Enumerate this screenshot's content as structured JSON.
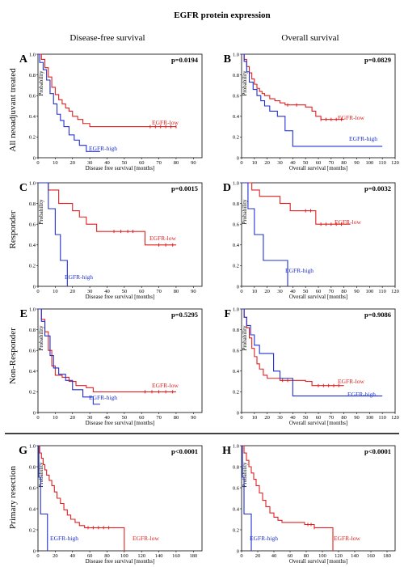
{
  "figure": {
    "title": "EGFR protein expression",
    "col_headers": [
      "Disease-free survival",
      "Overall survival"
    ],
    "row_labels": [
      "All neoadjuvant treated",
      "Responder",
      "Non-Responder",
      "Primary resection"
    ]
  },
  "colors": {
    "low": "#e02020",
    "high": "#2030d0"
  },
  "chart_data": [
    {
      "panel": "A",
      "type": "line",
      "p_value": "p=0.0194",
      "xlabel": "Disease free survival [months]",
      "ylabel": "Probability",
      "xlim": [
        0,
        95
      ],
      "ylim": [
        0,
        1
      ],
      "xticks": [
        0,
        10,
        20,
        30,
        40,
        50,
        60,
        70,
        80,
        90
      ],
      "yticks": [
        "0",
        "0.2",
        "0.4",
        "0.6",
        "0.8",
        "1.0"
      ],
      "series": [
        {
          "name": "EGFR-low",
          "color": "low",
          "censor": [
            65,
            68,
            71,
            74,
            77,
            80
          ],
          "points": [
            [
              0,
              1
            ],
            [
              2,
              0.95
            ],
            [
              4,
              0.87
            ],
            [
              6,
              0.78
            ],
            [
              8,
              0.68
            ],
            [
              10,
              0.61
            ],
            [
              12,
              0.56
            ],
            [
              14,
              0.52
            ],
            [
              16,
              0.48
            ],
            [
              18,
              0.45
            ],
            [
              20,
              0.4
            ],
            [
              23,
              0.37
            ],
            [
              26,
              0.33
            ],
            [
              30,
              0.3
            ],
            [
              80,
              0.3
            ]
          ]
        },
        {
          "name": "EGFR-high",
          "color": "high",
          "censor": [],
          "points": [
            [
              0,
              1
            ],
            [
              1,
              0.92
            ],
            [
              3,
              0.85
            ],
            [
              5,
              0.75
            ],
            [
              7,
              0.62
            ],
            [
              9,
              0.52
            ],
            [
              11,
              0.42
            ],
            [
              13,
              0.36
            ],
            [
              15,
              0.3
            ],
            [
              18,
              0.22
            ],
            [
              21,
              0.17
            ],
            [
              24,
              0.12
            ],
            [
              28,
              0.06
            ],
            [
              36,
              0.06
            ]
          ]
        }
      ]
    },
    {
      "panel": "B",
      "type": "line",
      "p_value": "p=0.0829",
      "xlabel": "Overall survival [months]",
      "ylabel": "Probability",
      "xlim": [
        0,
        120
      ],
      "ylim": [
        0,
        1
      ],
      "xticks": [
        0,
        10,
        20,
        30,
        40,
        50,
        60,
        70,
        80,
        90,
        100,
        110,
        120
      ],
      "yticks": [
        "0",
        "0.2",
        "0.4",
        "0.6",
        "0.8",
        "1.0"
      ],
      "series": [
        {
          "name": "EGFR-low",
          "color": "low",
          "censor": [
            36,
            43,
            62,
            66,
            70,
            74,
            78
          ],
          "points": [
            [
              0,
              1
            ],
            [
              2,
              0.95
            ],
            [
              4,
              0.88
            ],
            [
              6,
              0.82
            ],
            [
              8,
              0.76
            ],
            [
              10,
              0.71
            ],
            [
              12,
              0.67
            ],
            [
              14,
              0.64
            ],
            [
              16,
              0.62
            ],
            [
              18,
              0.6
            ],
            [
              22,
              0.57
            ],
            [
              26,
              0.55
            ],
            [
              30,
              0.53
            ],
            [
              34,
              0.51
            ],
            [
              50,
              0.49
            ],
            [
              55,
              0.45
            ],
            [
              58,
              0.4
            ],
            [
              62,
              0.37
            ],
            [
              80,
              0.37
            ]
          ]
        },
        {
          "name": "EGFR-high",
          "color": "high",
          "censor": [],
          "points": [
            [
              0,
              1
            ],
            [
              2,
              0.93
            ],
            [
              4,
              0.83
            ],
            [
              6,
              0.73
            ],
            [
              9,
              0.66
            ],
            [
              12,
              0.6
            ],
            [
              15,
              0.55
            ],
            [
              18,
              0.5
            ],
            [
              22,
              0.45
            ],
            [
              28,
              0.4
            ],
            [
              34,
              0.26
            ],
            [
              40,
              0.11
            ],
            [
              110,
              0.11
            ]
          ]
        }
      ]
    },
    {
      "panel": "C",
      "type": "line",
      "p_value": "p=0.0015",
      "xlabel": "Disease free survival [months]",
      "ylabel": "Probability",
      "xlim": [
        0,
        95
      ],
      "ylim": [
        0,
        1
      ],
      "xticks": [
        0,
        10,
        20,
        30,
        40,
        50,
        60,
        70,
        80,
        90
      ],
      "yticks": [
        "0",
        "0.2",
        "0.4",
        "0.6",
        "0.8",
        "1.0"
      ],
      "series": [
        {
          "name": "EGFR-low",
          "color": "low",
          "censor": [
            44,
            48,
            52,
            55,
            70,
            74,
            78
          ],
          "points": [
            [
              0,
              1
            ],
            [
              6,
              0.93
            ],
            [
              12,
              0.8
            ],
            [
              20,
              0.73
            ],
            [
              24,
              0.67
            ],
            [
              28,
              0.6
            ],
            [
              34,
              0.53
            ],
            [
              60,
              0.53
            ],
            [
              62,
              0.4
            ],
            [
              80,
              0.4
            ]
          ]
        },
        {
          "name": "EGFR-high",
          "color": "high",
          "censor": [],
          "points": [
            [
              0,
              1
            ],
            [
              6,
              0.75
            ],
            [
              10,
              0.5
            ],
            [
              13,
              0.25
            ],
            [
              17,
              0
            ]
          ]
        }
      ]
    },
    {
      "panel": "D",
      "type": "line",
      "p_value": "p=0.0032",
      "xlabel": "Overall survival [months]",
      "ylabel": "Probability",
      "xlim": [
        0,
        120
      ],
      "ylim": [
        0,
        1
      ],
      "xticks": [
        0,
        10,
        20,
        30,
        40,
        50,
        60,
        70,
        80,
        90,
        100,
        110,
        120
      ],
      "yticks": [
        "0",
        "0.2",
        "0.4",
        "0.6",
        "0.8",
        "1.0"
      ],
      "series": [
        {
          "name": "EGFR-low",
          "color": "low",
          "censor": [
            50,
            54,
            62,
            66,
            70,
            74,
            78
          ],
          "points": [
            [
              0,
              1
            ],
            [
              8,
              0.93
            ],
            [
              14,
              0.87
            ],
            [
              30,
              0.8
            ],
            [
              38,
              0.73
            ],
            [
              55,
              0.73
            ],
            [
              58,
              0.6
            ],
            [
              85,
              0.6
            ]
          ]
        },
        {
          "name": "EGFR-high",
          "color": "high",
          "censor": [],
          "points": [
            [
              0,
              1
            ],
            [
              5,
              0.75
            ],
            [
              10,
              0.5
            ],
            [
              17,
              0.25
            ],
            [
              36,
              0
            ]
          ]
        }
      ]
    },
    {
      "panel": "E",
      "type": "line",
      "p_value": "p=0.5295",
      "xlabel": "Disease free survival [months]",
      "ylabel": "Probability",
      "xlim": [
        0,
        95
      ],
      "ylim": [
        0,
        1
      ],
      "xticks": [
        0,
        10,
        20,
        30,
        40,
        50,
        60,
        70,
        80,
        90
      ],
      "yticks": [
        "0",
        "0.2",
        "0.4",
        "0.6",
        "0.8",
        "1.0"
      ],
      "series": [
        {
          "name": "EGFR-low",
          "color": "low",
          "censor": [
            62,
            66,
            70,
            74,
            78
          ],
          "points": [
            [
              0,
              1
            ],
            [
              2,
              0.9
            ],
            [
              4,
              0.78
            ],
            [
              6,
              0.6
            ],
            [
              8,
              0.45
            ],
            [
              10,
              0.36
            ],
            [
              14,
              0.34
            ],
            [
              18,
              0.3
            ],
            [
              22,
              0.26
            ],
            [
              28,
              0.24
            ],
            [
              32,
              0.2
            ],
            [
              80,
              0.2
            ]
          ]
        },
        {
          "name": "EGFR-high",
          "color": "high",
          "censor": [],
          "points": [
            [
              0,
              1
            ],
            [
              2,
              0.88
            ],
            [
              4,
              0.74
            ],
            [
              7,
              0.55
            ],
            [
              9,
              0.43
            ],
            [
              12,
              0.37
            ],
            [
              16,
              0.31
            ],
            [
              20,
              0.22
            ],
            [
              26,
              0.15
            ],
            [
              32,
              0.08
            ],
            [
              36,
              0.08
            ]
          ]
        }
      ]
    },
    {
      "panel": "F",
      "type": "line",
      "p_value": "p=0.9086",
      "xlabel": "Overall survival [months]",
      "ylabel": "Probability",
      "xlim": [
        0,
        120
      ],
      "ylim": [
        0,
        1
      ],
      "xticks": [
        0,
        10,
        20,
        30,
        40,
        50,
        60,
        70,
        80,
        90,
        100,
        110,
        120
      ],
      "yticks": [
        "0",
        "0.2",
        "0.4",
        "0.6",
        "0.8",
        "1.0"
      ],
      "series": [
        {
          "name": "EGFR-low",
          "color": "low",
          "censor": [
            32,
            36,
            60,
            64,
            68,
            72,
            76
          ],
          "points": [
            [
              0,
              1
            ],
            [
              2,
              0.92
            ],
            [
              4,
              0.82
            ],
            [
              6,
              0.72
            ],
            [
              8,
              0.62
            ],
            [
              10,
              0.54
            ],
            [
              12,
              0.47
            ],
            [
              14,
              0.42
            ],
            [
              17,
              0.36
            ],
            [
              20,
              0.33
            ],
            [
              30,
              0.31
            ],
            [
              50,
              0.3
            ],
            [
              55,
              0.26
            ],
            [
              80,
              0.26
            ]
          ]
        },
        {
          "name": "EGFR-high",
          "color": "high",
          "censor": [],
          "points": [
            [
              0,
              1
            ],
            [
              2,
              0.92
            ],
            [
              4,
              0.84
            ],
            [
              7,
              0.75
            ],
            [
              10,
              0.65
            ],
            [
              14,
              0.57
            ],
            [
              22,
              0.57
            ],
            [
              25,
              0.4
            ],
            [
              30,
              0.33
            ],
            [
              40,
              0.16
            ],
            [
              110,
              0.16
            ]
          ]
        }
      ]
    },
    {
      "panel": "G",
      "type": "line",
      "p_value": "p<0.0001",
      "xlabel": "Disease free survival [months]",
      "ylabel": "Probability",
      "xlim": [
        0,
        190
      ],
      "ylim": [
        0,
        1
      ],
      "xticks": [
        0,
        20,
        40,
        60,
        80,
        100,
        120,
        140,
        160,
        180
      ],
      "yticks": [
        "0",
        "0.2",
        "0.4",
        "0.6",
        "0.8",
        "1.0"
      ],
      "series": [
        {
          "name": "EGFR-low",
          "color": "low",
          "censor": [
            58,
            64,
            70,
            76,
            82
          ],
          "points": [
            [
              0,
              1
            ],
            [
              2,
              0.93
            ],
            [
              4,
              0.88
            ],
            [
              6,
              0.82
            ],
            [
              8,
              0.77
            ],
            [
              10,
              0.72
            ],
            [
              13,
              0.67
            ],
            [
              16,
              0.62
            ],
            [
              19,
              0.56
            ],
            [
              22,
              0.5
            ],
            [
              26,
              0.45
            ],
            [
              30,
              0.39
            ],
            [
              34,
              0.34
            ],
            [
              38,
              0.3
            ],
            [
              43,
              0.27
            ],
            [
              48,
              0.24
            ],
            [
              54,
              0.22
            ],
            [
              100,
              0.22
            ],
            [
              100,
              0
            ]
          ]
        },
        {
          "name": "EGFR-high",
          "color": "high",
          "censor": [],
          "points": [
            [
              0,
              1
            ],
            [
              1,
              0.7
            ],
            [
              3,
              0.35
            ],
            [
              10,
              0.35
            ],
            [
              11,
              0
            ]
          ]
        }
      ]
    },
    {
      "panel": "H",
      "type": "line",
      "p_value": "p<0.0001",
      "xlabel": "Overall survival [months]",
      "ylabel": "Probability",
      "xlim": [
        0,
        190
      ],
      "ylim": [
        0,
        1
      ],
      "xticks": [
        0,
        20,
        40,
        60,
        80,
        100,
        120,
        140,
        160,
        180
      ],
      "yticks": [
        "0",
        "0.2",
        "0.4",
        "0.6",
        "0.8",
        "1.0"
      ],
      "series": [
        {
          "name": "EGFR-low",
          "color": "low",
          "censor": [
            82,
            86,
            90
          ],
          "points": [
            [
              0,
              1
            ],
            [
              3,
              0.93
            ],
            [
              6,
              0.86
            ],
            [
              9,
              0.8
            ],
            [
              12,
              0.74
            ],
            [
              15,
              0.68
            ],
            [
              18,
              0.62
            ],
            [
              22,
              0.55
            ],
            [
              26,
              0.48
            ],
            [
              30,
              0.42
            ],
            [
              35,
              0.36
            ],
            [
              40,
              0.32
            ],
            [
              45,
              0.29
            ],
            [
              50,
              0.27
            ],
            [
              70,
              0.27
            ],
            [
              78,
              0.25
            ],
            [
              90,
              0.22
            ],
            [
              113,
              0.22
            ],
            [
              113,
              0
            ]
          ]
        },
        {
          "name": "EGFR-high",
          "color": "high",
          "censor": [],
          "points": [
            [
              0,
              1
            ],
            [
              1,
              0.7
            ],
            [
              3,
              0.35
            ],
            [
              11,
              0.35
            ],
            [
              12,
              0
            ]
          ]
        }
      ]
    }
  ]
}
